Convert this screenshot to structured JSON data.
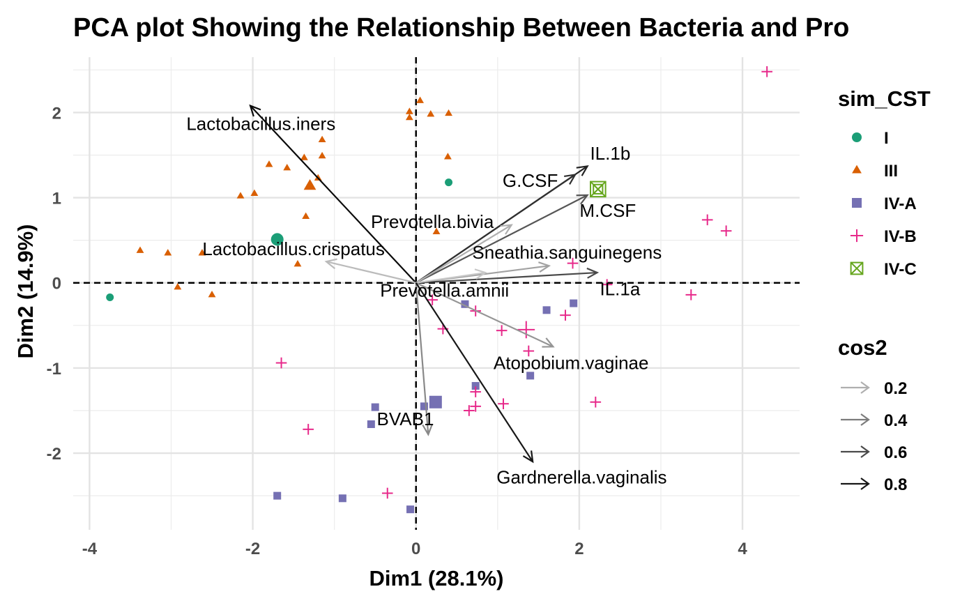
{
  "chart_data": {
    "type": "scatter",
    "subtype": "pca-biplot",
    "title": "PCA plot Showing the Relationship Between Bacteria and Pro",
    "xlabel": "Dim1 (28.1%)",
    "ylabel": "Dim2 (14.9%)",
    "xlim": [
      -4.2,
      4.7
    ],
    "ylim": [
      -2.9,
      2.65
    ],
    "x_ticks": [
      -4,
      -2,
      0,
      2,
      4
    ],
    "y_ticks": [
      -2,
      -1,
      0,
      1,
      2
    ],
    "x_tick_labels": [
      "-4",
      "-2",
      "0",
      "2",
      "4"
    ],
    "y_tick_labels": [
      "-2",
      "-1",
      "0",
      "1",
      "2"
    ],
    "grid": true,
    "reference_lines": {
      "x": 0,
      "y": 0,
      "style": "dashed"
    },
    "legend_position": "right",
    "colors": {
      "I": "#1b9e77",
      "III": "#d95f02",
      "IV-A": "#7570b3",
      "IV-B": "#e7298a",
      "IV-C": "#66a61e"
    },
    "groups_legend": {
      "title": "sim_CST",
      "items": [
        {
          "label": "I",
          "shape": "circle"
        },
        {
          "label": "III",
          "shape": "triangle"
        },
        {
          "label": "IV-A",
          "shape": "square"
        },
        {
          "label": "IV-B",
          "shape": "plus"
        },
        {
          "label": "IV-C",
          "shape": "boxed-x"
        }
      ]
    },
    "cos2_legend": {
      "title": "cos2",
      "items": [
        {
          "label": "0.2",
          "value": 0.2
        },
        {
          "label": "0.4",
          "value": 0.4
        },
        {
          "label": "0.6",
          "value": 0.6
        },
        {
          "label": "0.8",
          "value": 0.8
        }
      ]
    },
    "series": [
      {
        "name": "I",
        "points": [
          [
            -3.75,
            -0.17
          ],
          [
            0.4,
            1.18
          ]
        ],
        "centroid": [
          -1.7,
          0.51
        ]
      },
      {
        "name": "III",
        "points": [
          [
            -0.08,
            2.01
          ],
          [
            0.05,
            2.14
          ],
          [
            -0.08,
            1.94
          ],
          [
            0.18,
            1.98
          ],
          [
            0.4,
            1.99
          ],
          [
            0.39,
            1.48
          ],
          [
            -1.15,
            1.68
          ],
          [
            -1.15,
            1.49
          ],
          [
            -1.37,
            1.47
          ],
          [
            -1.8,
            1.39
          ],
          [
            -1.58,
            1.35
          ],
          [
            -1.2,
            1.23
          ],
          [
            -1.98,
            1.05
          ],
          [
            -2.15,
            1.02
          ],
          [
            -1.35,
            0.78
          ],
          [
            0.25,
            0.6
          ],
          [
            -3.38,
            0.38
          ],
          [
            -3.04,
            0.35
          ],
          [
            -2.62,
            0.35
          ],
          [
            -1.45,
            0.22
          ],
          [
            -2.92,
            -0.05
          ],
          [
            -2.5,
            -0.14
          ]
        ],
        "centroid": [
          -1.3,
          1.14
        ]
      },
      {
        "name": "IV-A",
        "points": [
          [
            0.6,
            -0.25
          ],
          [
            1.6,
            -0.32
          ],
          [
            1.93,
            -0.24
          ],
          [
            1.4,
            -1.09
          ],
          [
            0.73,
            -1.21
          ],
          [
            -0.5,
            -1.46
          ],
          [
            0.1,
            -1.45
          ],
          [
            -0.55,
            -1.66
          ],
          [
            -1.7,
            -2.5
          ],
          [
            -0.9,
            -2.53
          ],
          [
            -0.07,
            -2.66
          ]
        ],
        "centroid": [
          0.24,
          -1.4
        ]
      },
      {
        "name": "IV-B",
        "points": [
          [
            4.3,
            2.48
          ],
          [
            3.57,
            0.74
          ],
          [
            3.8,
            0.61
          ],
          [
            1.92,
            0.23
          ],
          [
            2.34,
            -0.02
          ],
          [
            3.37,
            -0.14
          ],
          [
            0.2,
            -0.2
          ],
          [
            0.73,
            -0.33
          ],
          [
            1.83,
            -0.38
          ],
          [
            0.33,
            -0.54
          ],
          [
            1.05,
            -0.56
          ],
          [
            1.38,
            -0.8
          ],
          [
            -1.65,
            -0.94
          ],
          [
            0.73,
            -1.28
          ],
          [
            0.73,
            -1.45
          ],
          [
            0.65,
            -1.5
          ],
          [
            1.07,
            -1.42
          ],
          [
            2.2,
            -1.4
          ],
          [
            -1.32,
            -1.72
          ],
          [
            -0.35,
            -2.47
          ]
        ],
        "centroid": [
          1.35,
          -0.55
        ]
      },
      {
        "name": "IV-C",
        "points": [
          [
            2.23,
            1.1
          ]
        ],
        "centroid": [
          2.23,
          1.1
        ]
      }
    ],
    "variables": [
      {
        "name": "Lactobacillus.iners",
        "x": -2.03,
        "y": 2.08,
        "cos2": 0.85,
        "label_x": -1.9,
        "label_y": 1.87
      },
      {
        "name": "Lactobacillus.crispatus",
        "x": -1.1,
        "y": 0.25,
        "cos2": 0.15,
        "label_x": -1.5,
        "label_y": 0.4
      },
      {
        "name": "IL.1b",
        "x": 2.1,
        "y": 1.37,
        "cos2": 0.75,
        "label_x": 2.38,
        "label_y": 1.52
      },
      {
        "name": "G.CSF",
        "x": 1.95,
        "y": 1.27,
        "cos2": 0.7,
        "label_x": 1.4,
        "label_y": 1.2
      },
      {
        "name": "M.CSF",
        "x": 2.1,
        "y": 1.03,
        "cos2": 0.55,
        "label_x": 2.35,
        "label_y": 0.85
      },
      {
        "name": "Prevotella.bivia",
        "x": 1.17,
        "y": 0.68,
        "cos2": 0.2,
        "label_x": 0.2,
        "label_y": 0.72
      },
      {
        "name": "Sneathia.sanguinegens",
        "x": 1.63,
        "y": 0.2,
        "cos2": 0.25,
        "label_x": 1.85,
        "label_y": 0.36
      },
      {
        "name": "IL.1a",
        "x": 2.22,
        "y": 0.12,
        "cos2": 0.6,
        "label_x": 2.5,
        "label_y": -0.07
      },
      {
        "name": "Prevotella.amnii",
        "x": 0.85,
        "y": 0.12,
        "cos2": 0.1,
        "label_x": 0.35,
        "label_y": -0.09
      },
      {
        "name": "Atopobium.vaginae",
        "x": 1.68,
        "y": -0.75,
        "cos2": 0.3,
        "label_x": 1.9,
        "label_y": -0.94
      },
      {
        "name": "BVAB1",
        "x": 0.15,
        "y": -1.78,
        "cos2": 0.35,
        "label_x": -0.13,
        "label_y": -1.6
      },
      {
        "name": "Gardnerella.vaginalis",
        "x": 1.43,
        "y": -2.1,
        "cos2": 0.8,
        "label_x": 2.03,
        "label_y": -2.28
      }
    ]
  }
}
